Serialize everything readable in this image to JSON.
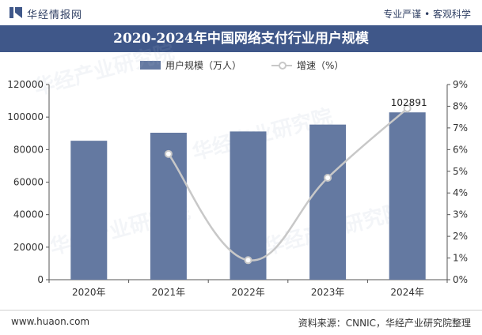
{
  "header": {
    "logo_text": "华经情报网",
    "slogan": "专业严谨 • 客观科学"
  },
  "title": "2020-2024年中国网络支付行业用户规模",
  "legend": {
    "bar_label": "用户规模（万人）",
    "line_label": "增速（%）"
  },
  "footer": {
    "url": "www.huaon.com",
    "source": "资料来源：CNNIC，华经产业研究院整理"
  },
  "watermark": "华经产业研究院",
  "colors": {
    "bar": "#6479a1",
    "line": "#c8c8c8",
    "title_band": "#3f5789",
    "axis": "#555555"
  },
  "chart_data": {
    "type": "bar",
    "categories": [
      "2020年",
      "2021年",
      "2022年",
      "2023年",
      "2024年"
    ],
    "series": [
      {
        "name": "用户规模（万人）",
        "type": "bar",
        "axis": "left",
        "values": [
          85434,
          90363,
          91144,
          95386,
          102891
        ]
      },
      {
        "name": "增速（%）",
        "type": "line",
        "axis": "right",
        "values": [
          null,
          5.8,
          0.9,
          4.7,
          7.9
        ]
      }
    ],
    "data_labels": [
      {
        "category": "2024年",
        "value": "102891"
      }
    ],
    "left_axis": {
      "ylim": [
        0,
        120000
      ],
      "ticks": [
        "0",
        "20000",
        "40000",
        "60000",
        "80000",
        "100000",
        "120000"
      ]
    },
    "right_axis": {
      "ylim": [
        0,
        9
      ],
      "ticks": [
        "0%",
        "1%",
        "2%",
        "3%",
        "4%",
        "5%",
        "6%",
        "7%",
        "8%",
        "9%"
      ]
    },
    "grid": false,
    "legend_position": "top-center"
  }
}
